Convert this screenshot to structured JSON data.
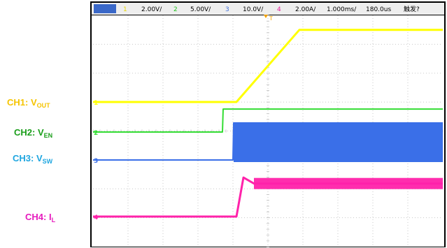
{
  "toolbar": {
    "items": [
      {
        "text": "1",
        "color": "#e8d800"
      },
      {
        "text": "2.00V/",
        "color": "#000000"
      },
      {
        "text": "2",
        "color": "#22c41f"
      },
      {
        "text": "5.00V/",
        "color": "#000000"
      },
      {
        "text": "3",
        "color": "#3f6fd8"
      },
      {
        "text": "10.0V/",
        "color": "#000000"
      },
      {
        "text": "4",
        "color": "#e61b9a"
      },
      {
        "text": "2.00A/",
        "color": "#000000"
      },
      {
        "text": "1.000ms/",
        "color": "#000000"
      },
      {
        "text": "180.0us",
        "color": "#000000"
      },
      {
        "text": "触发?",
        "color": "#000000"
      }
    ]
  },
  "channel_labels": [
    {
      "main": "CH1: V",
      "sub": "OUT",
      "color": "#f5c400"
    },
    {
      "main": "CH2: V",
      "sub": "EN",
      "color": "#1a9e1a"
    },
    {
      "main": "CH3: V",
      "sub": "SW",
      "color": "#1fa6e0"
    },
    {
      "main": "CH4: I",
      "sub": "L",
      "color": "#e61bbd"
    }
  ],
  "markers": {
    "ch1": "1",
    "ch2": "2",
    "ch3": "3",
    "ch4": "4",
    "trigger": "T"
  },
  "colors": {
    "ch1": "#ffff00",
    "ch2": "#33dd33",
    "ch3": "#3a6fe8",
    "ch4": "#ff22aa",
    "grid": "#c8c8c8"
  },
  "chart_data": {
    "type": "line",
    "x_unit": "ms",
    "x_range": [
      0,
      10
    ],
    "grid": true,
    "series": [
      {
        "name": "CH1: VOUT",
        "points": [
          [
            0,
            0
          ],
          [
            4.1,
            0
          ],
          [
            5.9,
            4.1
          ],
          [
            10,
            4.1
          ]
        ]
      },
      {
        "name": "CH2: VEN",
        "points": [
          [
            0,
            0
          ],
          [
            3.7,
            0
          ],
          [
            3.72,
            3.5
          ],
          [
            10,
            3.5
          ]
        ]
      },
      {
        "name": "CH3: VSW",
        "points": [
          [
            0,
            0
          ],
          [
            4.0,
            0
          ],
          [
            4.02,
            10.0
          ],
          [
            10,
            10.0
          ]
        ]
      },
      {
        "name": "CH4: IL",
        "points": [
          [
            0,
            0
          ],
          [
            4.1,
            0
          ],
          [
            4.3,
            2.6
          ],
          [
            4.6,
            2.2
          ],
          [
            10,
            2.2
          ]
        ]
      }
    ]
  }
}
